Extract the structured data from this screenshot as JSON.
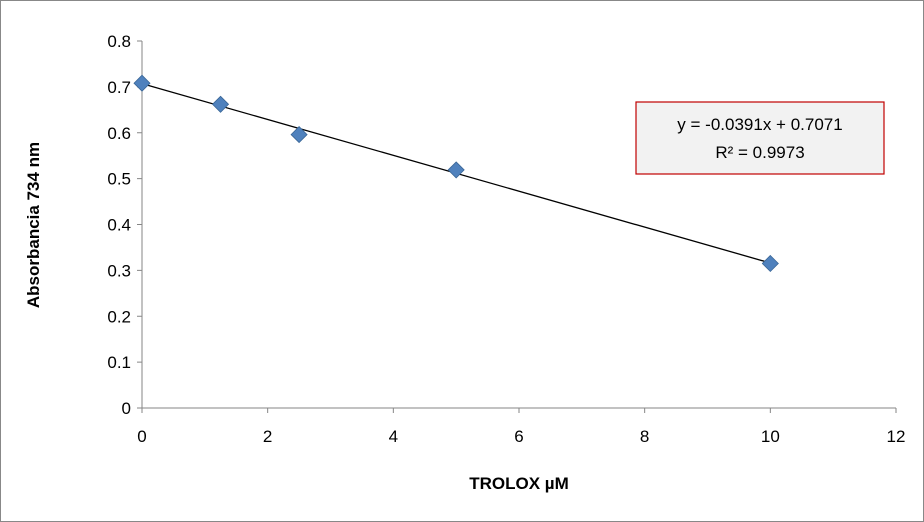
{
  "chart_data": {
    "type": "scatter",
    "title": "",
    "xlabel": "TROLOX µM",
    "ylabel": "Absorbancia 734 nm",
    "xlim": [
      0,
      12
    ],
    "ylim": [
      0,
      0.8
    ],
    "xticks": [
      0,
      2,
      4,
      6,
      8,
      10,
      12
    ],
    "yticks": [
      0,
      0.1,
      0.2,
      0.3,
      0.4,
      0.5,
      0.6,
      0.7,
      0.8
    ],
    "ytick_labels": [
      "0",
      "0.1",
      "0.2",
      "0.3",
      "0.4",
      "0.5",
      "0.6",
      "0.7",
      "0.8"
    ],
    "grid": false,
    "legend": "none",
    "marker": "diamond",
    "marker_color": "#4F81BD",
    "trendline_color": "#000000",
    "series": [
      {
        "points": [
          {
            "x": 0,
            "y": 0.708
          },
          {
            "x": 1.25,
            "y": 0.662
          },
          {
            "x": 2.5,
            "y": 0.596
          },
          {
            "x": 5,
            "y": 0.519
          },
          {
            "x": 10,
            "y": 0.315
          }
        ]
      }
    ],
    "trendline": {
      "slope": -0.0391,
      "intercept": 0.7071,
      "equation": "y = -0.0391x + 0.7071",
      "r2": "R² = 0.9973",
      "box_border_color": "#C00000",
      "box_fill_color": "#F2F2F2"
    }
  }
}
